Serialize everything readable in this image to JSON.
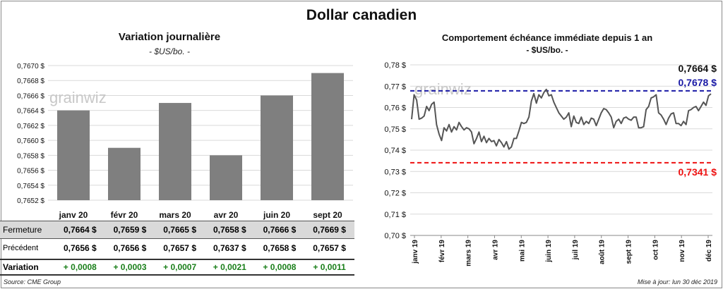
{
  "title": "Dollar canadien",
  "source": "Source: CME Group",
  "updated": "Mise à jour: lun 30 déc 2019",
  "watermark": "grainwiz",
  "left": {
    "title": "Variation  journalière",
    "subtitle": "- $US/bo. -",
    "table": {
      "row_labels": {
        "close": "Fermeture",
        "prev": "Précédent",
        "var": "Variation"
      },
      "close": [
        "0,7664  $",
        "0,7659  $",
        "0,7665  $",
        "0,7658  $",
        "0,7666  $",
        "0,7669  $"
      ],
      "prev": [
        "0,7656  $",
        "0,7656  $",
        "0,7657  $",
        "0,7637  $",
        "0,7658  $",
        "0,7657  $"
      ],
      "var": [
        "+ 0,0008",
        "+ 0,0003",
        "+ 0,0007",
        "+ 0,0021",
        "+ 0,0008",
        "+ 0,0011"
      ]
    }
  },
  "right": {
    "title": "Comportement échéance immédiate depuis 1 an",
    "subtitle": "- $US/bo. -",
    "last_label": "0,7664 $",
    "high_label": "0,7678 $",
    "low_label": "0,7341 $"
  },
  "chart_data": [
    {
      "type": "bar",
      "categories": [
        "janv 20",
        "févr 20",
        "mars 20",
        "avr 20",
        "juin 20",
        "sept 20"
      ],
      "values": [
        0.7664,
        0.7659,
        0.7665,
        0.7658,
        0.7666,
        0.7669
      ],
      "ylim": [
        0.7652,
        0.767
      ],
      "yticks": [
        "0,7652 $",
        "0,7654 $",
        "0,7656 $",
        "0,7658 $",
        "0,7660 $",
        "0,7662 $",
        "0,7664 $",
        "0,7666 $",
        "0,7668 $",
        "0,7670 $"
      ],
      "grid": true,
      "bar_color": "#7f7f7f"
    },
    {
      "type": "line",
      "ylim": [
        0.7,
        0.78
      ],
      "yticks": [
        "0,70 $",
        "0,71 $",
        "0,72 $",
        "0,73 $",
        "0,74 $",
        "0,75 $",
        "0,76 $",
        "0,77 $",
        "0,78 $"
      ],
      "xticks": [
        "janv 19",
        "févr 19",
        "mars 19",
        "avr 19",
        "mai 19",
        "juin 19",
        "juil 19",
        "août 19",
        "sept 19",
        "oct 19",
        "nov 19",
        "déc 19"
      ],
      "values": [
        0.7545,
        0.766,
        0.7635,
        0.7545,
        0.755,
        0.756,
        0.7605,
        0.7585,
        0.7615,
        0.7625,
        0.752,
        0.7475,
        0.7445,
        0.7505,
        0.749,
        0.752,
        0.7485,
        0.751,
        0.7495,
        0.753,
        0.751,
        0.7495,
        0.7505,
        0.75,
        0.7485,
        0.743,
        0.7455,
        0.7485,
        0.744,
        0.7465,
        0.7435,
        0.7455,
        0.744,
        0.7445,
        0.742,
        0.745,
        0.7435,
        0.7415,
        0.744,
        0.7405,
        0.7415,
        0.7455,
        0.7455,
        0.749,
        0.753,
        0.7525,
        0.753,
        0.7555,
        0.763,
        0.7665,
        0.762,
        0.766,
        0.7645,
        0.767,
        0.7685,
        0.7655,
        0.766,
        0.7625,
        0.76,
        0.7575,
        0.756,
        0.7545,
        0.7555,
        0.7575,
        0.751,
        0.756,
        0.753,
        0.7525,
        0.7555,
        0.752,
        0.7535,
        0.7525,
        0.755,
        0.7545,
        0.7515,
        0.7545,
        0.7575,
        0.7595,
        0.759,
        0.7575,
        0.7555,
        0.7505,
        0.7535,
        0.7545,
        0.7525,
        0.755,
        0.7555,
        0.7545,
        0.754,
        0.7555,
        0.7555,
        0.7505,
        0.7505,
        0.751,
        0.759,
        0.7605,
        0.7645,
        0.765,
        0.766,
        0.7575,
        0.7565,
        0.7545,
        0.752,
        0.755,
        0.757,
        0.7575,
        0.7525,
        0.7525,
        0.7515,
        0.7535,
        0.752,
        0.7585,
        0.759,
        0.76,
        0.7605,
        0.7585,
        0.7605,
        0.7625,
        0.761,
        0.7655,
        0.7664
      ],
      "high": 0.7678,
      "low": 0.7341,
      "high_color": "#1a1aa6",
      "low_color": "#ee1111",
      "line_color": "#555555",
      "grid": true
    }
  ]
}
